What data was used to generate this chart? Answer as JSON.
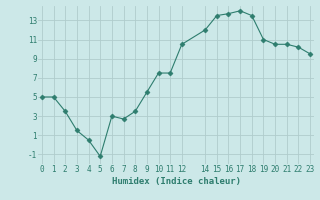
{
  "xlabel": "Humidex (Indice chaleur)",
  "x": [
    0,
    1,
    2,
    3,
    4,
    5,
    6,
    7,
    8,
    9,
    10,
    11,
    12,
    14,
    15,
    16,
    17,
    18,
    19,
    20,
    21,
    22,
    23
  ],
  "y": [
    5,
    5,
    3.5,
    1.5,
    0.5,
    -1.2,
    3,
    2.7,
    3.5,
    5.5,
    7.5,
    7.5,
    10.5,
    12,
    13.5,
    13.7,
    14,
    13.5,
    11,
    10.5,
    10.5,
    10.2,
    9.5
  ],
  "line_color": "#2e7d6e",
  "marker": "D",
  "marker_size": 2.5,
  "bg_color": "#cce8e8",
  "grid_color": "#b0cccc",
  "axis_label_color": "#2e7d6e",
  "tick_label_color": "#2e7d6e",
  "ylim": [
    -2,
    14.5
  ],
  "yticks": [
    -1,
    1,
    3,
    5,
    7,
    9,
    11,
    13
  ],
  "xlim": [
    -0.3,
    23.3
  ],
  "xticks": [
    0,
    1,
    2,
    3,
    4,
    5,
    6,
    7,
    8,
    9,
    10,
    11,
    12,
    14,
    15,
    16,
    17,
    18,
    19,
    20,
    21,
    22,
    23
  ],
  "xtick_labels": [
    "0",
    "1",
    "2",
    "3",
    "4",
    "5",
    "6",
    "7",
    "8",
    "9",
    "10",
    "11",
    "12",
    "14",
    "15",
    "16",
    "17",
    "18",
    "19",
    "20",
    "21",
    "22",
    "23"
  ],
  "font_family": "monospace",
  "label_fontsize": 6.5,
  "tick_fontsize": 5.5
}
